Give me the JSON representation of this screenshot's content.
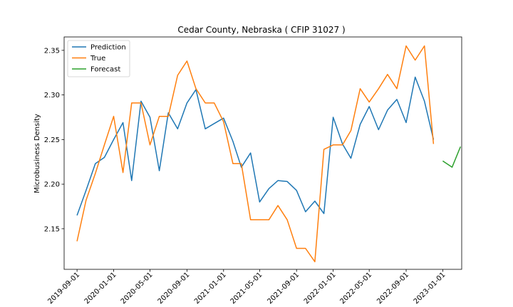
{
  "chart_data": {
    "type": "line",
    "title": "Cedar County, Nebraska ( CFIP 31027 )",
    "xlabel": "",
    "ylabel": "Microbusiness Density",
    "x_ticks": [
      "2019-09-01",
      "2020-01-01",
      "2020-05-01",
      "2020-09-01",
      "2021-01-01",
      "2021-05-01",
      "2021-09-01",
      "2022-01-01",
      "2022-05-01",
      "2022-09-01",
      "2023-01-01"
    ],
    "y_ticks": [
      "2.15",
      "2.20",
      "2.25",
      "2.30",
      "2.35"
    ],
    "xlim": [
      "2019-07-20",
      "2023-03-05"
    ],
    "ylim": [
      2.1045,
      2.365
    ],
    "legend_position": "top-left",
    "series": [
      {
        "name": "Prediction",
        "color": "#1f77b4",
        "x": [
          "2019-09-01",
          "2019-10-01",
          "2019-11-01",
          "2019-12-01",
          "2020-01-01",
          "2020-02-01",
          "2020-03-01",
          "2020-04-01",
          "2020-05-01",
          "2020-06-01",
          "2020-07-01",
          "2020-08-01",
          "2020-09-01",
          "2020-10-01",
          "2020-11-01",
          "2020-12-01",
          "2021-01-01",
          "2021-02-01",
          "2021-03-01",
          "2021-04-01",
          "2021-05-01",
          "2021-06-01",
          "2021-07-01",
          "2021-08-01",
          "2021-09-01",
          "2021-10-01",
          "2021-11-01",
          "2021-12-01",
          "2022-01-01",
          "2022-02-01",
          "2022-03-01",
          "2022-04-01",
          "2022-05-01",
          "2022-06-01",
          "2022-07-01",
          "2022-08-01",
          "2022-09-01",
          "2022-10-01",
          "2022-11-01",
          "2022-12-01"
        ],
        "values": [
          2.165,
          2.193,
          2.223,
          2.23,
          2.25,
          2.269,
          2.204,
          2.293,
          2.275,
          2.215,
          2.28,
          2.262,
          2.291,
          2.306,
          2.262,
          2.268,
          2.274,
          2.248,
          2.219,
          2.235,
          2.18,
          2.195,
          2.204,
          2.203,
          2.193,
          2.169,
          2.181,
          2.167,
          2.275,
          2.245,
          2.229,
          2.267,
          2.287,
          2.261,
          2.283,
          2.295,
          2.269,
          2.32,
          2.293,
          2.25
        ]
      },
      {
        "name": "True",
        "color": "#ff7f0e",
        "x": [
          "2019-09-01",
          "2019-10-01",
          "2019-11-01",
          "2019-12-01",
          "2020-01-01",
          "2020-02-01",
          "2020-03-01",
          "2020-04-01",
          "2020-05-01",
          "2020-06-01",
          "2020-07-01",
          "2020-08-01",
          "2020-09-01",
          "2020-10-01",
          "2020-11-01",
          "2020-12-01",
          "2021-01-01",
          "2021-02-01",
          "2021-03-01",
          "2021-04-01",
          "2021-05-01",
          "2021-06-01",
          "2021-07-01",
          "2021-08-01",
          "2021-09-01",
          "2021-10-01",
          "2021-11-01",
          "2021-12-01",
          "2022-01-01",
          "2022-02-01",
          "2022-03-01",
          "2022-04-01",
          "2022-05-01",
          "2022-06-01",
          "2022-07-01",
          "2022-08-01",
          "2022-09-01",
          "2022-10-01",
          "2022-11-01",
          "2022-12-01"
        ],
        "values": [
          2.136,
          2.182,
          2.212,
          2.244,
          2.276,
          2.213,
          2.291,
          2.291,
          2.244,
          2.276,
          2.276,
          2.322,
          2.338,
          2.307,
          2.291,
          2.291,
          2.27,
          2.223,
          2.223,
          2.16,
          2.16,
          2.16,
          2.176,
          2.16,
          2.128,
          2.128,
          2.113,
          2.239,
          2.244,
          2.244,
          2.26,
          2.307,
          2.292,
          2.307,
          2.323,
          2.307,
          2.355,
          2.339,
          2.355,
          2.245
        ]
      },
      {
        "name": "Forecast",
        "color": "#2ca02c",
        "x": [
          "2023-01-01",
          "2023-02-01",
          "2023-03-01"
        ],
        "values": [
          2.226,
          2.219,
          2.242
        ]
      }
    ]
  }
}
